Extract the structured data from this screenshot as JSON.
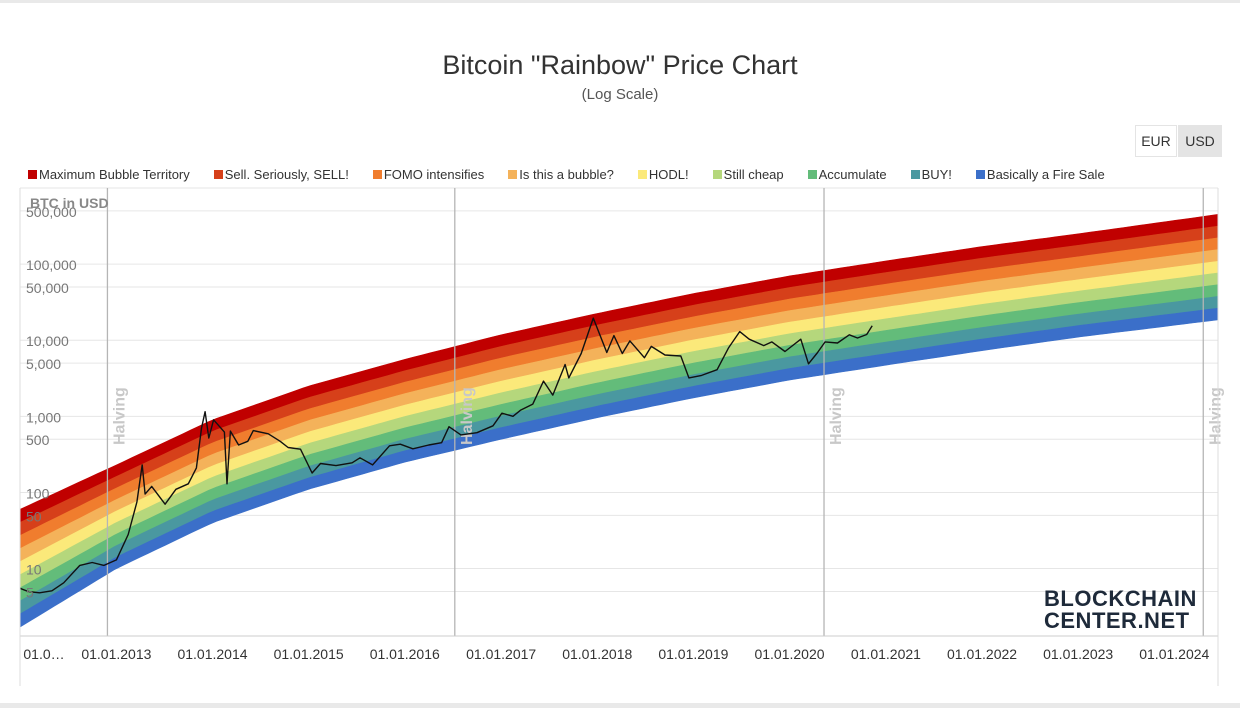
{
  "title": "Bitcoin \"Rainbow\" Price Chart",
  "subtitle": "(Log Scale)",
  "currency_buttons": [
    "EUR",
    "USD"
  ],
  "active_currency": "USD",
  "logo": {
    "line1": "BLOCKCHAIN",
    "line2": "CENTER.NET"
  },
  "chart_data": {
    "type": "area",
    "yscale": "log",
    "ylabel": "BTC in USD",
    "ylim": [
      1.3,
      1000000
    ],
    "y_ticks": [
      "500,000",
      "100,000",
      "50,000",
      "10,000",
      "5,000",
      "1,000",
      "500",
      "100",
      "50",
      "10",
      "5"
    ],
    "x_ticks": [
      "01.0…",
      "01.01.2013",
      "01.01.2014",
      "01.01.2015",
      "01.01.2016",
      "01.01.2017",
      "01.01.2018",
      "01.01.2019",
      "01.01.2020",
      "01.01.2021",
      "01.01.2022",
      "01.01.2023",
      "01.01.2024"
    ],
    "xlim": [
      "2012-01-01",
      "2024-06-15"
    ],
    "halvings": [
      {
        "date": "2012-11-28",
        "label": "Halving"
      },
      {
        "date": "2016-07-09",
        "label": "Halving"
      },
      {
        "date": "2020-05-11",
        "label": "Halving"
      },
      {
        "date": "2024-04-20",
        "label": "Halving"
      }
    ],
    "bands": [
      {
        "name": "Maximum Bubble Territory",
        "color": "#c00000"
      },
      {
        "name": "Sell. Seriously, SELL!",
        "color": "#d6401a"
      },
      {
        "name": "FOMO intensifies",
        "color": "#f07d2e"
      },
      {
        "name": "Is this a bubble?",
        "color": "#f4b25a"
      },
      {
        "name": "HODL!",
        "color": "#fbe97a"
      },
      {
        "name": "Still cheap",
        "color": "#b5d77c"
      },
      {
        "name": "Accumulate",
        "color": "#63bc7a"
      },
      {
        "name": "BUY!",
        "color": "#4a98a0"
      },
      {
        "name": "Basically a Fire Sale",
        "color": "#3b6fc9"
      }
    ],
    "band_top_edge": [
      {
        "date": "2012-01-01",
        "value": 60
      },
      {
        "date": "2013-01-01",
        "value": 230
      },
      {
        "date": "2014-01-01",
        "value": 900
      },
      {
        "date": "2015-01-01",
        "value": 2500
      },
      {
        "date": "2016-01-01",
        "value": 5600
      },
      {
        "date": "2017-01-01",
        "value": 11800
      },
      {
        "date": "2018-01-01",
        "value": 22500
      },
      {
        "date": "2019-01-01",
        "value": 41000
      },
      {
        "date": "2020-01-01",
        "value": 70000
      },
      {
        "date": "2021-01-01",
        "value": 110000
      },
      {
        "date": "2022-01-01",
        "value": 170000
      },
      {
        "date": "2023-01-01",
        "value": 250000
      },
      {
        "date": "2024-06-15",
        "value": 450000
      }
    ],
    "band_bottom_edge": [
      {
        "date": "2012-01-01",
        "value": 1.7
      },
      {
        "date": "2013-01-01",
        "value": 10
      },
      {
        "date": "2014-01-01",
        "value": 40
      },
      {
        "date": "2015-01-01",
        "value": 110
      },
      {
        "date": "2016-01-01",
        "value": 250
      },
      {
        "date": "2017-01-01",
        "value": 500
      },
      {
        "date": "2018-01-01",
        "value": 960
      },
      {
        "date": "2019-01-01",
        "value": 1750
      },
      {
        "date": "2020-01-01",
        "value": 3000
      },
      {
        "date": "2021-01-01",
        "value": 4700
      },
      {
        "date": "2022-01-01",
        "value": 7300
      },
      {
        "date": "2023-01-01",
        "value": 11000
      },
      {
        "date": "2024-06-15",
        "value": 18500
      }
    ],
    "price_series": {
      "color": "#111111",
      "points": [
        [
          "2012-01-01",
          5.5
        ],
        [
          "2012-02-01",
          5.0
        ],
        [
          "2012-03-15",
          4.8
        ],
        [
          "2012-05-01",
          5.1
        ],
        [
          "2012-06-15",
          6.5
        ],
        [
          "2012-08-15",
          11
        ],
        [
          "2012-10-01",
          12
        ],
        [
          "2012-11-15",
          11
        ],
        [
          "2013-01-01",
          13
        ],
        [
          "2013-02-15",
          28
        ],
        [
          "2013-03-20",
          75
        ],
        [
          "2013-04-09",
          230
        ],
        [
          "2013-04-20",
          95
        ],
        [
          "2013-05-15",
          120
        ],
        [
          "2013-07-05",
          70
        ],
        [
          "2013-08-15",
          110
        ],
        [
          "2013-10-01",
          130
        ],
        [
          "2013-11-01",
          210
        ],
        [
          "2013-11-20",
          700
        ],
        [
          "2013-12-04",
          1150
        ],
        [
          "2013-12-18",
          520
        ],
        [
          "2014-01-05",
          900
        ],
        [
          "2014-02-15",
          620
        ],
        [
          "2014-02-25",
          130
        ],
        [
          "2014-03-10",
          640
        ],
        [
          "2014-04-10",
          420
        ],
        [
          "2014-05-15",
          470
        ],
        [
          "2014-06-05",
          650
        ],
        [
          "2014-08-01",
          590
        ],
        [
          "2014-09-15",
          470
        ],
        [
          "2014-10-15",
          390
        ],
        [
          "2014-12-01",
          370
        ],
        [
          "2015-01-14",
          180
        ],
        [
          "2015-02-15",
          240
        ],
        [
          "2015-04-15",
          225
        ],
        [
          "2015-06-15",
          245
        ],
        [
          "2015-07-15",
          285
        ],
        [
          "2015-09-01",
          230
        ],
        [
          "2015-11-04",
          410
        ],
        [
          "2015-12-15",
          430
        ],
        [
          "2016-02-01",
          375
        ],
        [
          "2016-04-01",
          420
        ],
        [
          "2016-05-20",
          450
        ],
        [
          "2016-06-17",
          730
        ],
        [
          "2016-08-01",
          570
        ],
        [
          "2016-10-01",
          610
        ],
        [
          "2016-12-01",
          750
        ],
        [
          "2017-01-04",
          1100
        ],
        [
          "2017-02-15",
          1000
        ],
        [
          "2017-03-15",
          1200
        ],
        [
          "2017-05-01",
          1450
        ],
        [
          "2017-06-11",
          2900
        ],
        [
          "2017-07-16",
          1900
        ],
        [
          "2017-09-01",
          4800
        ],
        [
          "2017-09-15",
          3200
        ],
        [
          "2017-11-01",
          6700
        ],
        [
          "2017-12-17",
          19500
        ],
        [
          "2018-02-06",
          6900
        ],
        [
          "2018-03-05",
          11500
        ],
        [
          "2018-04-06",
          6700
        ],
        [
          "2018-05-05",
          9800
        ],
        [
          "2018-06-29",
          5900
        ],
        [
          "2018-07-25",
          8300
        ],
        [
          "2018-09-15",
          6400
        ],
        [
          "2018-11-14",
          6200
        ],
        [
          "2018-12-15",
          3200
        ],
        [
          "2019-02-01",
          3450
        ],
        [
          "2019-04-01",
          4100
        ],
        [
          "2019-05-15",
          8000
        ],
        [
          "2019-06-26",
          13000
        ],
        [
          "2019-08-01",
          10300
        ],
        [
          "2019-09-25",
          8500
        ],
        [
          "2019-10-26",
          9500
        ],
        [
          "2019-12-15",
          7100
        ],
        [
          "2020-02-13",
          10300
        ],
        [
          "2020-03-13",
          4900
        ],
        [
          "2020-04-15",
          6800
        ],
        [
          "2020-05-15",
          9500
        ],
        [
          "2020-07-01",
          9200
        ],
        [
          "2020-08-15",
          11800
        ],
        [
          "2020-09-15",
          10700
        ],
        [
          "2020-10-20",
          11900
        ],
        [
          "2020-11-10",
          15500
        ]
      ]
    }
  }
}
